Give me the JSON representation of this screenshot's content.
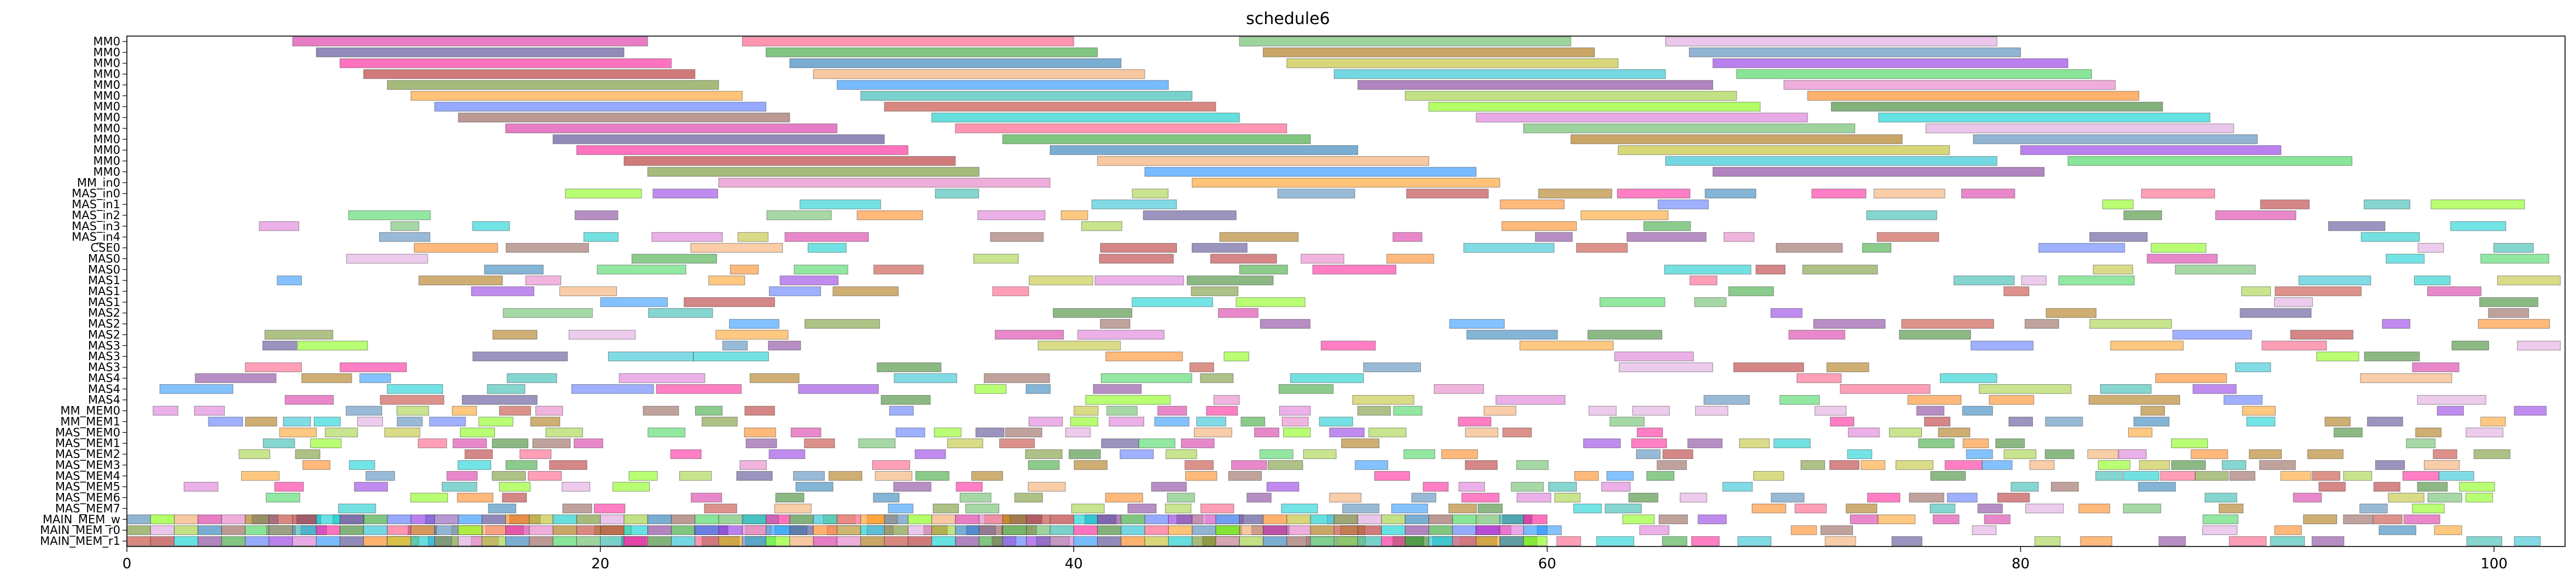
{
  "chart_data": {
    "type": "gantt",
    "title": "schedule6",
    "xlabel": "",
    "ylabel": "",
    "xlim": [
      0,
      103
    ],
    "x_ticks": [
      0,
      20,
      40,
      60,
      80,
      100
    ],
    "grid": false,
    "legend": "none",
    "rows": [
      "MM0",
      "MM0",
      "MM0",
      "MM0",
      "MM0",
      "MM0",
      "MM0",
      "MM0",
      "MM0",
      "MM0",
      "MM0",
      "MM0",
      "MM0",
      "MM_in0",
      "MAS_in0",
      "MAS_in1",
      "MAS_in2",
      "MAS_in3",
      "MAS_in4",
      "CSE0",
      "MAS0",
      "MAS0",
      "MAS1",
      "MAS1",
      "MAS1",
      "MAS2",
      "MAS2",
      "MAS2",
      "MAS3",
      "MAS3",
      "MAS3",
      "MAS4",
      "MAS4",
      "MAS4",
      "MM_MEM0",
      "MM_MEM1",
      "MAS_MEM0",
      "MAS_MEM1",
      "MAS_MEM2",
      "MAS_MEM3",
      "MAS_MEM4",
      "MAS_MEM5",
      "MAS_MEM6",
      "MAS_MEM7",
      "MAIN_MEM_w",
      "MAIN_MEM_r0",
      "MAIN_MEM_r1"
    ],
    "palette": [
      "#2e7d1f",
      "#7b3294",
      "#1f77b4",
      "#d6269f",
      "#ff7f0e",
      "#17becf",
      "#2ca02c",
      "#8c564b",
      "#e377c2",
      "#bcbd22",
      "#ff4f7b",
      "#4f6fff",
      "#39d353",
      "#a66b00",
      "#00c8c8",
      "#ff9a1a",
      "#8a2be2",
      "#5cb85c",
      "#c0392b",
      "#6b8e23",
      "#4682b4",
      "#da70d6",
      "#20b2aa",
      "#b22222",
      "#dda0dd",
      "#7fff00",
      "#1e90ff",
      "#ff1493",
      "#00ced1",
      "#9acd32",
      "#f4a460",
      "#483d8b"
    ],
    "bars": [
      {
        "row": 0,
        "start": 7,
        "end": 22
      },
      {
        "row": 0,
        "start": 26,
        "end": 40
      },
      {
        "row": 0,
        "start": 47,
        "end": 61
      },
      {
        "row": 0,
        "start": 65,
        "end": 79
      },
      {
        "row": 1,
        "start": 8,
        "end": 21
      },
      {
        "row": 1,
        "start": 27,
        "end": 41
      },
      {
        "row": 1,
        "start": 48,
        "end": 62
      },
      {
        "row": 1,
        "start": 66,
        "end": 80
      },
      {
        "row": 2,
        "start": 9,
        "end": 23
      },
      {
        "row": 2,
        "start": 28,
        "end": 42
      },
      {
        "row": 2,
        "start": 49,
        "end": 63
      },
      {
        "row": 2,
        "start": 67,
        "end": 82
      },
      {
        "row": 3,
        "start": 10,
        "end": 24
      },
      {
        "row": 3,
        "start": 29,
        "end": 43
      },
      {
        "row": 3,
        "start": 51,
        "end": 65
      },
      {
        "row": 3,
        "start": 68,
        "end": 83
      },
      {
        "row": 4,
        "start": 11,
        "end": 25
      },
      {
        "row": 4,
        "start": 30,
        "end": 44
      },
      {
        "row": 4,
        "start": 52,
        "end": 67
      },
      {
        "row": 4,
        "start": 70,
        "end": 84
      },
      {
        "row": 5,
        "start": 12,
        "end": 26
      },
      {
        "row": 5,
        "start": 31,
        "end": 45
      },
      {
        "row": 5,
        "start": 54,
        "end": 68
      },
      {
        "row": 5,
        "start": 71,
        "end": 85
      },
      {
        "row": 6,
        "start": 13,
        "end": 27
      },
      {
        "row": 6,
        "start": 32,
        "end": 46
      },
      {
        "row": 6,
        "start": 55,
        "end": 69
      },
      {
        "row": 6,
        "start": 72,
        "end": 86
      },
      {
        "row": 7,
        "start": 14,
        "end": 28
      },
      {
        "row": 7,
        "start": 34,
        "end": 47
      },
      {
        "row": 7,
        "start": 57,
        "end": 71
      },
      {
        "row": 7,
        "start": 74,
        "end": 88
      },
      {
        "row": 8,
        "start": 16,
        "end": 30
      },
      {
        "row": 8,
        "start": 35,
        "end": 49
      },
      {
        "row": 8,
        "start": 59,
        "end": 73
      },
      {
        "row": 8,
        "start": 76,
        "end": 89
      },
      {
        "row": 9,
        "start": 18,
        "end": 32
      },
      {
        "row": 9,
        "start": 37,
        "end": 50
      },
      {
        "row": 9,
        "start": 61,
        "end": 75
      },
      {
        "row": 9,
        "start": 78,
        "end": 90
      },
      {
        "row": 10,
        "start": 19,
        "end": 33
      },
      {
        "row": 10,
        "start": 39,
        "end": 52
      },
      {
        "row": 10,
        "start": 63,
        "end": 77
      },
      {
        "row": 10,
        "start": 80,
        "end": 91
      },
      {
        "row": 11,
        "start": 21,
        "end": 35
      },
      {
        "row": 11,
        "start": 41,
        "end": 55
      },
      {
        "row": 11,
        "start": 65,
        "end": 79
      },
      {
        "row": 11,
        "start": 82,
        "end": 94
      },
      {
        "row": 12,
        "start": 22,
        "end": 36
      },
      {
        "row": 12,
        "start": 43,
        "end": 57
      },
      {
        "row": 12,
        "start": 67,
        "end": 81
      },
      {
        "row": 13,
        "start": 25,
        "end": 39
      },
      {
        "row": 13,
        "start": 45,
        "end": 58
      }
    ]
  }
}
